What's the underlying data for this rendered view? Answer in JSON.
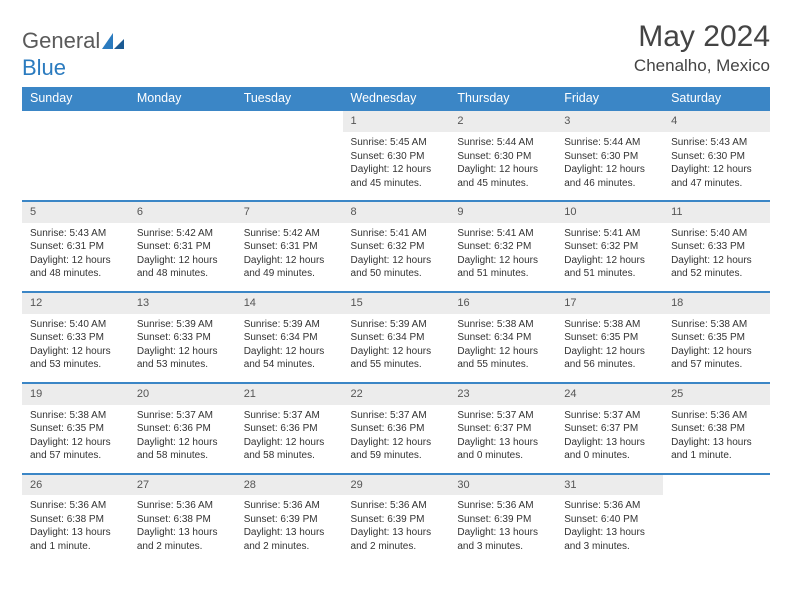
{
  "brand": {
    "part1": "General",
    "part2": "Blue"
  },
  "title": "May 2024",
  "location": "Chenalho, Mexico",
  "colors": {
    "header_bg": "#3b86c6",
    "header_text": "#ffffff",
    "daynum_bg": "#ececec",
    "border": "#3b86c6",
    "text": "#333333",
    "brand_gray": "#5a5a5a",
    "brand_blue": "#2b7bbf"
  },
  "typography": {
    "title_fontsize": 30,
    "location_fontsize": 17,
    "header_fontsize": 12.5,
    "body_fontsize": 10
  },
  "weekdays": [
    "Sunday",
    "Monday",
    "Tuesday",
    "Wednesday",
    "Thursday",
    "Friday",
    "Saturday"
  ],
  "weeks": [
    [
      {
        "day": "",
        "sunrise": "",
        "sunset": "",
        "daylight": ""
      },
      {
        "day": "",
        "sunrise": "",
        "sunset": "",
        "daylight": ""
      },
      {
        "day": "",
        "sunrise": "",
        "sunset": "",
        "daylight": ""
      },
      {
        "day": "1",
        "sunrise": "Sunrise: 5:45 AM",
        "sunset": "Sunset: 6:30 PM",
        "daylight": "Daylight: 12 hours and 45 minutes."
      },
      {
        "day": "2",
        "sunrise": "Sunrise: 5:44 AM",
        "sunset": "Sunset: 6:30 PM",
        "daylight": "Daylight: 12 hours and 45 minutes."
      },
      {
        "day": "3",
        "sunrise": "Sunrise: 5:44 AM",
        "sunset": "Sunset: 6:30 PM",
        "daylight": "Daylight: 12 hours and 46 minutes."
      },
      {
        "day": "4",
        "sunrise": "Sunrise: 5:43 AM",
        "sunset": "Sunset: 6:30 PM",
        "daylight": "Daylight: 12 hours and 47 minutes."
      }
    ],
    [
      {
        "day": "5",
        "sunrise": "Sunrise: 5:43 AM",
        "sunset": "Sunset: 6:31 PM",
        "daylight": "Daylight: 12 hours and 48 minutes."
      },
      {
        "day": "6",
        "sunrise": "Sunrise: 5:42 AM",
        "sunset": "Sunset: 6:31 PM",
        "daylight": "Daylight: 12 hours and 48 minutes."
      },
      {
        "day": "7",
        "sunrise": "Sunrise: 5:42 AM",
        "sunset": "Sunset: 6:31 PM",
        "daylight": "Daylight: 12 hours and 49 minutes."
      },
      {
        "day": "8",
        "sunrise": "Sunrise: 5:41 AM",
        "sunset": "Sunset: 6:32 PM",
        "daylight": "Daylight: 12 hours and 50 minutes."
      },
      {
        "day": "9",
        "sunrise": "Sunrise: 5:41 AM",
        "sunset": "Sunset: 6:32 PM",
        "daylight": "Daylight: 12 hours and 51 minutes."
      },
      {
        "day": "10",
        "sunrise": "Sunrise: 5:41 AM",
        "sunset": "Sunset: 6:32 PM",
        "daylight": "Daylight: 12 hours and 51 minutes."
      },
      {
        "day": "11",
        "sunrise": "Sunrise: 5:40 AM",
        "sunset": "Sunset: 6:33 PM",
        "daylight": "Daylight: 12 hours and 52 minutes."
      }
    ],
    [
      {
        "day": "12",
        "sunrise": "Sunrise: 5:40 AM",
        "sunset": "Sunset: 6:33 PM",
        "daylight": "Daylight: 12 hours and 53 minutes."
      },
      {
        "day": "13",
        "sunrise": "Sunrise: 5:39 AM",
        "sunset": "Sunset: 6:33 PM",
        "daylight": "Daylight: 12 hours and 53 minutes."
      },
      {
        "day": "14",
        "sunrise": "Sunrise: 5:39 AM",
        "sunset": "Sunset: 6:34 PM",
        "daylight": "Daylight: 12 hours and 54 minutes."
      },
      {
        "day": "15",
        "sunrise": "Sunrise: 5:39 AM",
        "sunset": "Sunset: 6:34 PM",
        "daylight": "Daylight: 12 hours and 55 minutes."
      },
      {
        "day": "16",
        "sunrise": "Sunrise: 5:38 AM",
        "sunset": "Sunset: 6:34 PM",
        "daylight": "Daylight: 12 hours and 55 minutes."
      },
      {
        "day": "17",
        "sunrise": "Sunrise: 5:38 AM",
        "sunset": "Sunset: 6:35 PM",
        "daylight": "Daylight: 12 hours and 56 minutes."
      },
      {
        "day": "18",
        "sunrise": "Sunrise: 5:38 AM",
        "sunset": "Sunset: 6:35 PM",
        "daylight": "Daylight: 12 hours and 57 minutes."
      }
    ],
    [
      {
        "day": "19",
        "sunrise": "Sunrise: 5:38 AM",
        "sunset": "Sunset: 6:35 PM",
        "daylight": "Daylight: 12 hours and 57 minutes."
      },
      {
        "day": "20",
        "sunrise": "Sunrise: 5:37 AM",
        "sunset": "Sunset: 6:36 PM",
        "daylight": "Daylight: 12 hours and 58 minutes."
      },
      {
        "day": "21",
        "sunrise": "Sunrise: 5:37 AM",
        "sunset": "Sunset: 6:36 PM",
        "daylight": "Daylight: 12 hours and 58 minutes."
      },
      {
        "day": "22",
        "sunrise": "Sunrise: 5:37 AM",
        "sunset": "Sunset: 6:36 PM",
        "daylight": "Daylight: 12 hours and 59 minutes."
      },
      {
        "day": "23",
        "sunrise": "Sunrise: 5:37 AM",
        "sunset": "Sunset: 6:37 PM",
        "daylight": "Daylight: 13 hours and 0 minutes."
      },
      {
        "day": "24",
        "sunrise": "Sunrise: 5:37 AM",
        "sunset": "Sunset: 6:37 PM",
        "daylight": "Daylight: 13 hours and 0 minutes."
      },
      {
        "day": "25",
        "sunrise": "Sunrise: 5:36 AM",
        "sunset": "Sunset: 6:38 PM",
        "daylight": "Daylight: 13 hours and 1 minute."
      }
    ],
    [
      {
        "day": "26",
        "sunrise": "Sunrise: 5:36 AM",
        "sunset": "Sunset: 6:38 PM",
        "daylight": "Daylight: 13 hours and 1 minute."
      },
      {
        "day": "27",
        "sunrise": "Sunrise: 5:36 AM",
        "sunset": "Sunset: 6:38 PM",
        "daylight": "Daylight: 13 hours and 2 minutes."
      },
      {
        "day": "28",
        "sunrise": "Sunrise: 5:36 AM",
        "sunset": "Sunset: 6:39 PM",
        "daylight": "Daylight: 13 hours and 2 minutes."
      },
      {
        "day": "29",
        "sunrise": "Sunrise: 5:36 AM",
        "sunset": "Sunset: 6:39 PM",
        "daylight": "Daylight: 13 hours and 2 minutes."
      },
      {
        "day": "30",
        "sunrise": "Sunrise: 5:36 AM",
        "sunset": "Sunset: 6:39 PM",
        "daylight": "Daylight: 13 hours and 3 minutes."
      },
      {
        "day": "31",
        "sunrise": "Sunrise: 5:36 AM",
        "sunset": "Sunset: 6:40 PM",
        "daylight": "Daylight: 13 hours and 3 minutes."
      },
      {
        "day": "",
        "sunrise": "",
        "sunset": "",
        "daylight": ""
      }
    ]
  ]
}
